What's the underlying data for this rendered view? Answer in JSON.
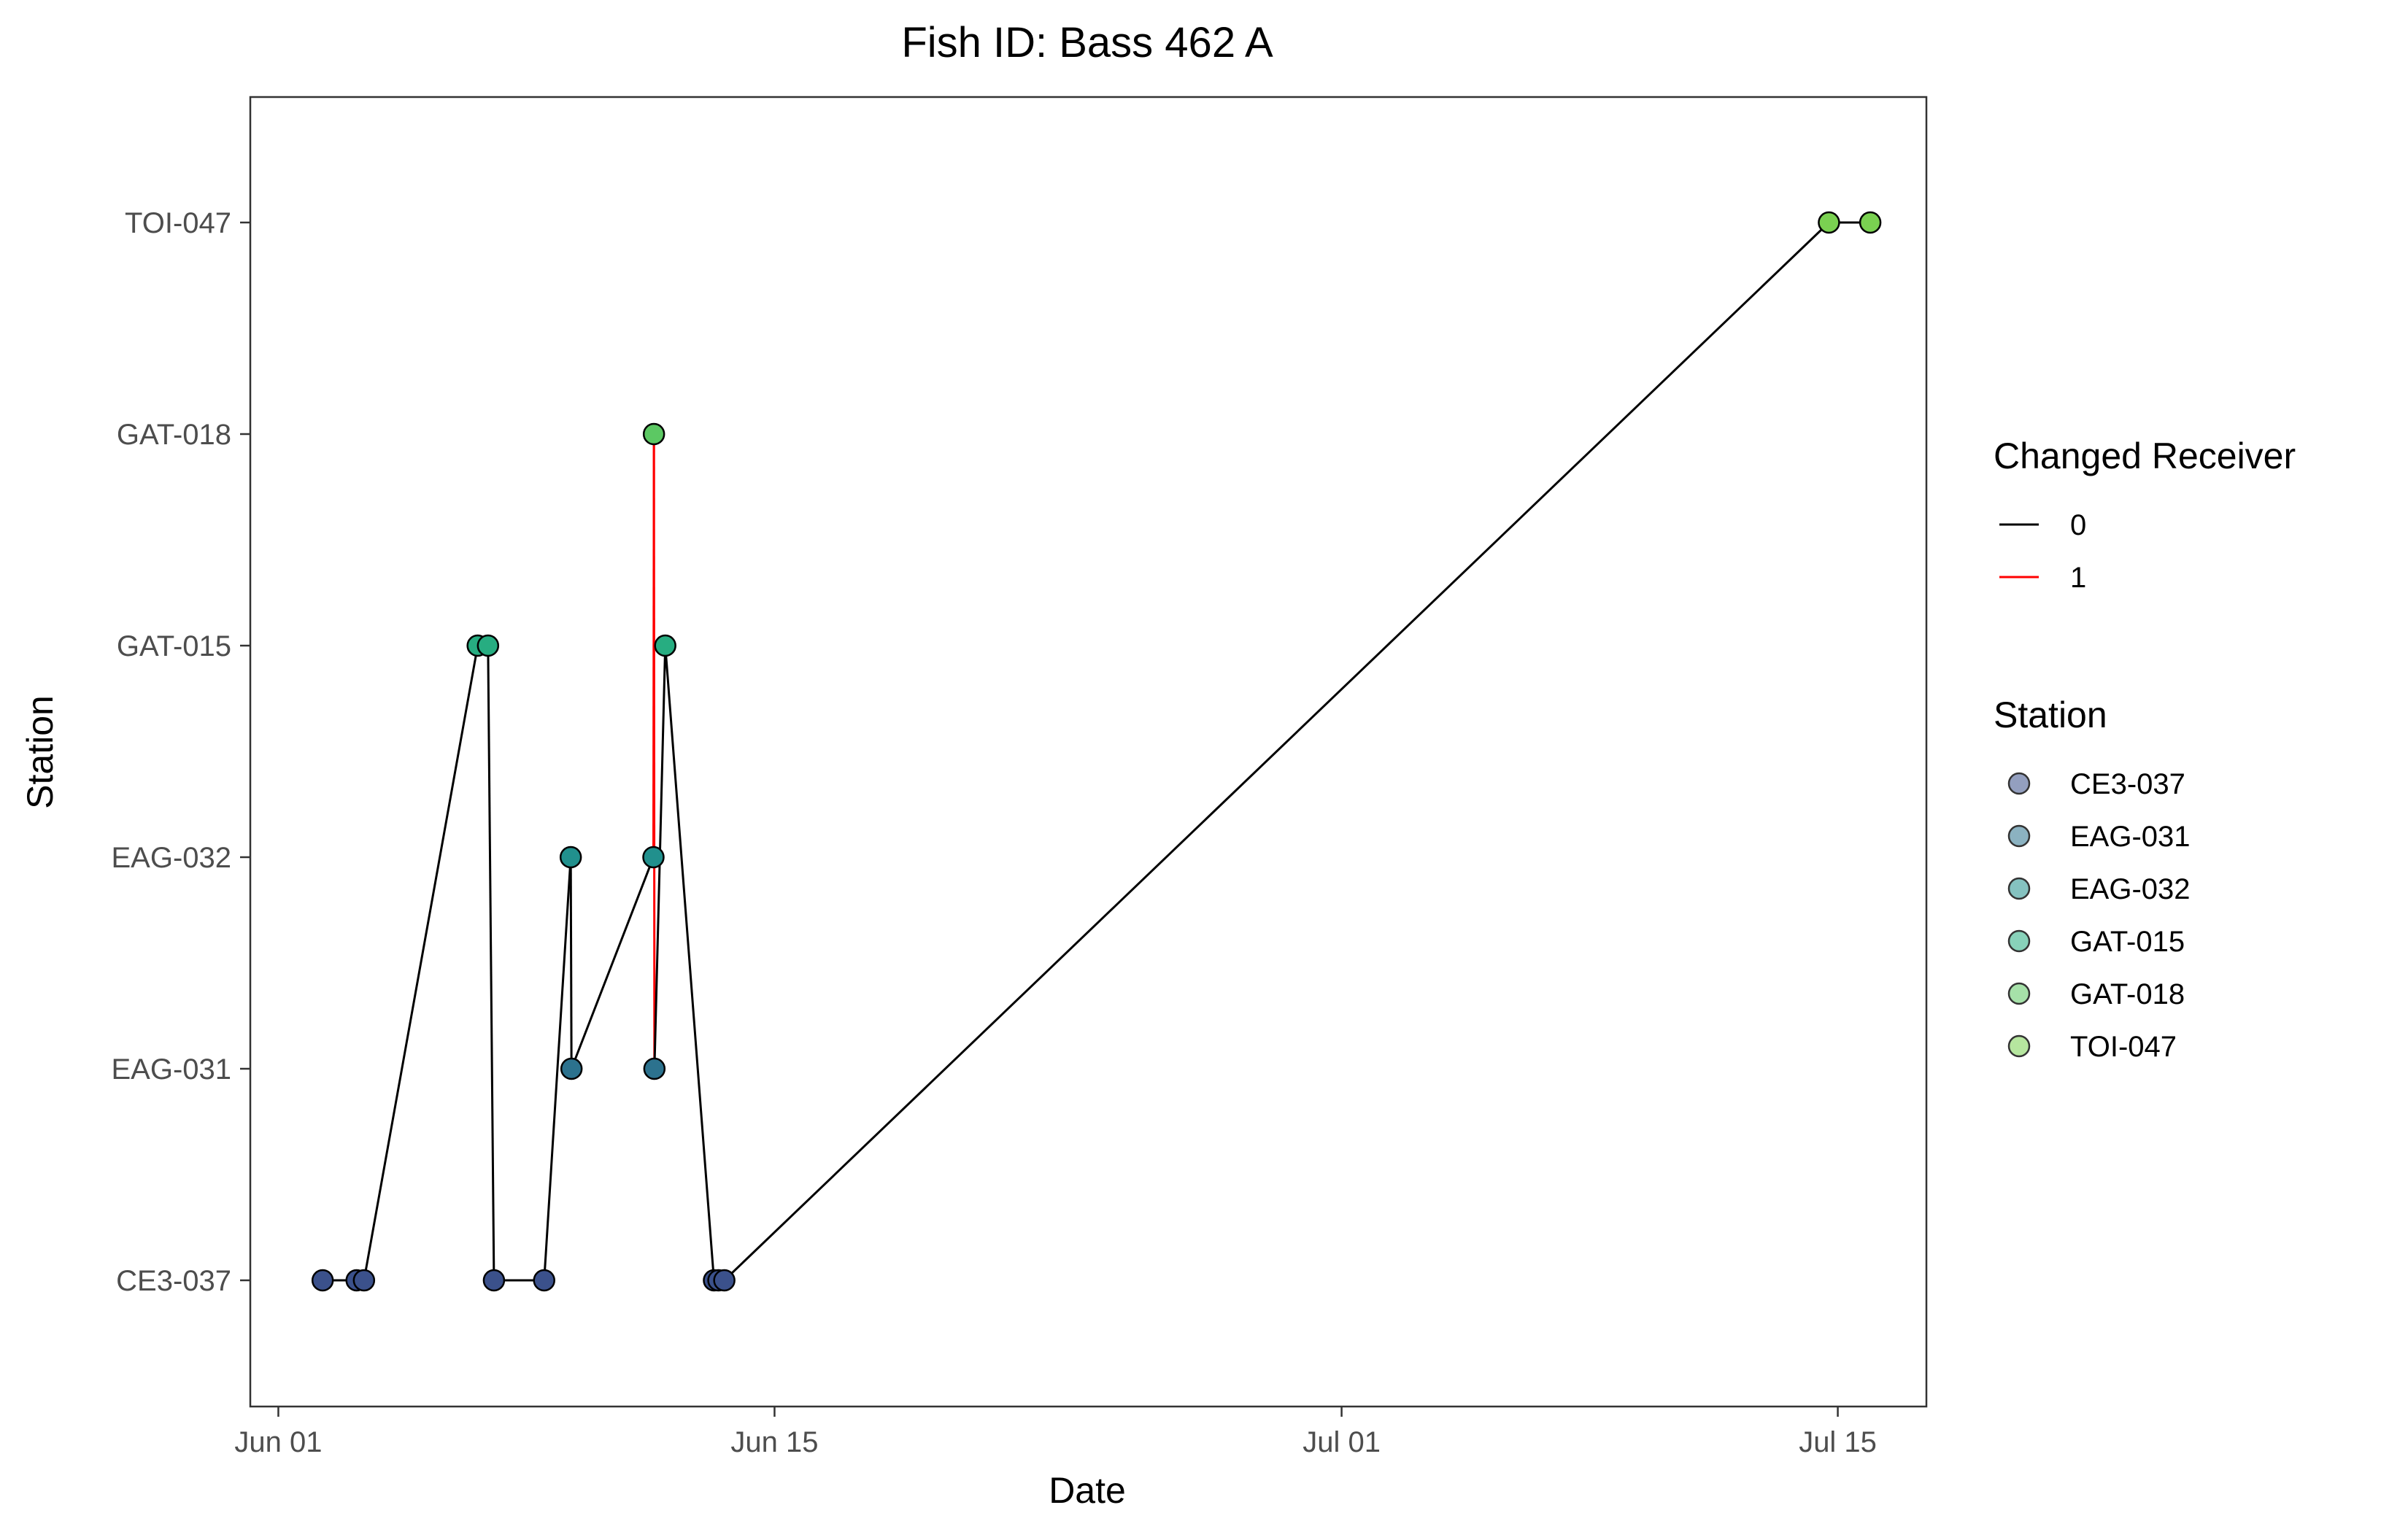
{
  "chart_data": {
    "type": "line",
    "title": "Fish ID: Bass 462 A",
    "xlabel": "Date",
    "ylabel": "Station",
    "x_tick_labels": [
      "Jun 01",
      "Jun 15",
      "Jul 01",
      "Jul 15"
    ],
    "x_ticks": [
      "2023-06-01",
      "2023-06-15",
      "2023-07-01",
      "2023-07-15"
    ],
    "xlim": [
      "2023-05-31T05:00",
      "2023-07-17T12:00"
    ],
    "categories": [
      "CE3-037",
      "EAG-031",
      "EAG-032",
      "GAT-015",
      "GAT-018",
      "TOI-047"
    ],
    "grid": false,
    "points": [
      {
        "x": "2023-06-02T06:00",
        "y": "CE3-037"
      },
      {
        "x": "2023-06-03T05:00",
        "y": "CE3-037"
      },
      {
        "x": "2023-06-03T10:00",
        "y": "CE3-037"
      },
      {
        "x": "2023-06-06T15:00",
        "y": "GAT-015"
      },
      {
        "x": "2023-06-06T22:00",
        "y": "GAT-015"
      },
      {
        "x": "2023-06-07T02:00",
        "y": "CE3-037"
      },
      {
        "x": "2023-06-08T12:00",
        "y": "CE3-037"
      },
      {
        "x": "2023-06-09T06:00",
        "y": "EAG-032"
      },
      {
        "x": "2023-06-09T06:30",
        "y": "EAG-031"
      },
      {
        "x": "2023-06-11T14:00",
        "y": "EAG-032"
      },
      {
        "x": "2023-06-11T14:20",
        "y": "GAT-018"
      },
      {
        "x": "2023-06-11T14:40",
        "y": "EAG-031"
      },
      {
        "x": "2023-06-11T22:00",
        "y": "GAT-015"
      },
      {
        "x": "2023-06-13T07:00",
        "y": "CE3-037"
      },
      {
        "x": "2023-06-13T10:00",
        "y": "CE3-037"
      },
      {
        "x": "2023-06-13T14:00",
        "y": "CE3-037"
      },
      {
        "x": "2023-07-14T18:00",
        "y": "TOI-047"
      },
      {
        "x": "2023-07-15T22:00",
        "y": "TOI-047"
      }
    ],
    "changed_receiver_segments": [
      {
        "from": "2023-06-11T14:00",
        "to": "2023-06-11T14:20",
        "value": "1"
      },
      {
        "from": "2023-06-11T14:20",
        "to": "2023-06-11T14:40",
        "value": "1"
      }
    ],
    "legends": [
      {
        "title": "Changed Receiver",
        "entries": [
          {
            "label": "0",
            "color": "#000000"
          },
          {
            "label": "1",
            "color": "#ff0000"
          }
        ]
      },
      {
        "title": "Station",
        "entries": [
          {
            "label": "CE3-037",
            "color": "#3b518b"
          },
          {
            "label": "EAG-031",
            "color": "#2c728e"
          },
          {
            "label": "EAG-032",
            "color": "#21908d"
          },
          {
            "label": "GAT-015",
            "color": "#27ad81"
          },
          {
            "label": "GAT-018",
            "color": "#5cc863"
          },
          {
            "label": "TOI-047",
            "color": "#7ad151"
          }
        ]
      }
    ],
    "legend_position": "right"
  }
}
